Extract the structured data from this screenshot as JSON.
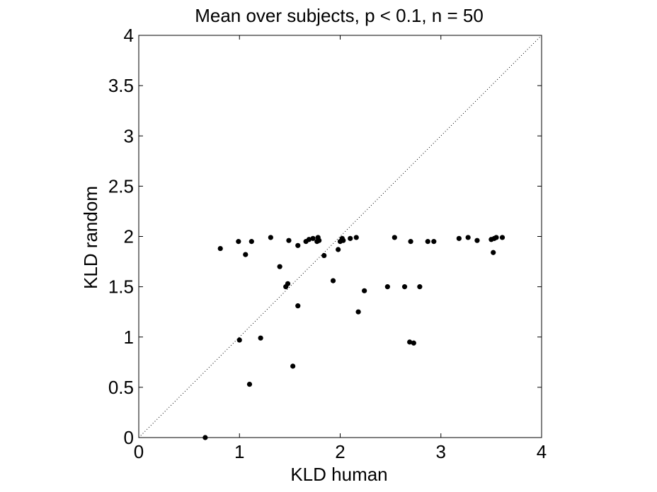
{
  "chart_data": {
    "type": "scatter",
    "title": "Mean over subjects, p < 0.1, n = 50",
    "xlabel": "KLD human",
    "ylabel": "KLD random",
    "xlim": [
      0,
      4
    ],
    "ylim": [
      0,
      4
    ],
    "xticks": [
      "0",
      "1",
      "2",
      "3",
      "4"
    ],
    "yticks": [
      "0",
      "0.5",
      "1",
      "1.5",
      "2",
      "2.5",
      "3",
      "3.5",
      "4"
    ],
    "grid": false,
    "box": true,
    "reference_line": {
      "type": "diagonal",
      "from": [
        0,
        0
      ],
      "to": [
        4,
        4
      ],
      "style": "dotted"
    },
    "marker_color": "#000000",
    "points": [
      [
        0.66,
        0.0
      ],
      [
        0.81,
        1.88
      ],
      [
        0.99,
        1.95
      ],
      [
        1.0,
        0.97
      ],
      [
        1.06,
        1.82
      ],
      [
        1.1,
        0.53
      ],
      [
        1.12,
        1.95
      ],
      [
        1.21,
        0.99
      ],
      [
        1.31,
        1.99
      ],
      [
        1.4,
        1.7
      ],
      [
        1.46,
        1.5
      ],
      [
        1.48,
        1.53
      ],
      [
        1.49,
        1.96
      ],
      [
        1.53,
        0.71
      ],
      [
        1.58,
        1.31
      ],
      [
        1.58,
        1.91
      ],
      [
        1.66,
        1.95
      ],
      [
        1.69,
        1.97
      ],
      [
        1.73,
        1.98
      ],
      [
        1.77,
        1.95
      ],
      [
        1.78,
        1.99
      ],
      [
        1.79,
        1.96
      ],
      [
        1.84,
        1.81
      ],
      [
        1.93,
        1.56
      ],
      [
        1.98,
        1.87
      ],
      [
        2.0,
        1.95
      ],
      [
        2.02,
        1.98
      ],
      [
        2.03,
        1.96
      ],
      [
        2.1,
        1.98
      ],
      [
        2.16,
        1.99
      ],
      [
        2.18,
        1.25
      ],
      [
        2.24,
        1.46
      ],
      [
        2.47,
        1.5
      ],
      [
        2.54,
        1.99
      ],
      [
        2.64,
        1.5
      ],
      [
        2.69,
        0.95
      ],
      [
        2.7,
        1.95
      ],
      [
        2.73,
        0.94
      ],
      [
        2.79,
        1.5
      ],
      [
        2.87,
        1.95
      ],
      [
        2.93,
        1.95
      ],
      [
        3.18,
        1.98
      ],
      [
        3.27,
        1.99
      ],
      [
        3.36,
        1.96
      ],
      [
        3.5,
        1.97
      ],
      [
        3.52,
        1.84
      ],
      [
        3.53,
        1.98
      ],
      [
        3.55,
        1.99
      ],
      [
        3.61,
        1.99
      ]
    ]
  }
}
